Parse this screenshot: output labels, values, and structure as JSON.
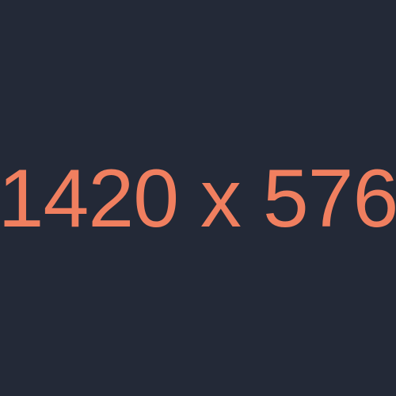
{
  "placeholder": {
    "text": "1420 x 576",
    "background_color": "#232937",
    "text_color": "#f07f5f"
  }
}
